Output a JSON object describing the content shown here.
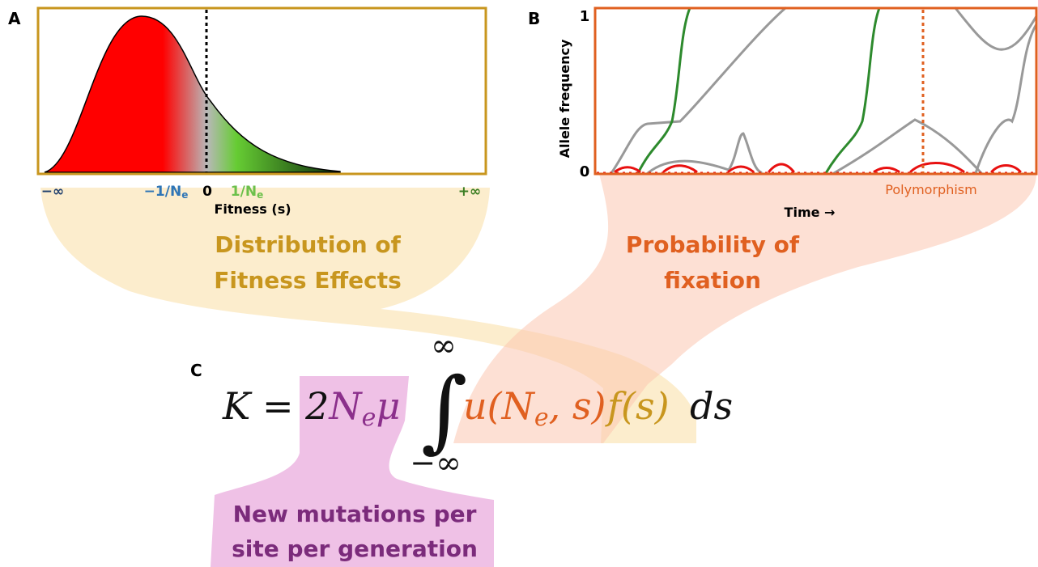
{
  "panel_a": {
    "label": "A",
    "ticks": [
      {
        "text": "−∞"
      },
      {
        "text": "−1/N",
        "sub": "e"
      },
      {
        "text": "0"
      },
      {
        "text": "1/N",
        "sub": "e"
      },
      {
        "text": "+∞"
      }
    ],
    "xlabel": "Fitness (s)",
    "caption": [
      "Distribution of",
      "Fitness Effects"
    ]
  },
  "panel_b": {
    "label": "B",
    "ylabel": "Allele frequency",
    "ytick_top": "1",
    "ytick_bottom": "0",
    "annotation": "Polymorphism",
    "xlabel": "Time →",
    "caption": [
      "Probability of",
      "fixation"
    ]
  },
  "panel_c": {
    "label": "C",
    "equation": [
      {
        "text": "K = 2"
      },
      {
        "text": "N"
      },
      {
        "text": "e"
      },
      {
        "text": "μ"
      },
      {
        "text": "u(N"
      },
      {
        "text": "e"
      },
      {
        "text": ", s)"
      },
      {
        "text": "f(s)"
      },
      {
        "text": "ds"
      }
    ],
    "integral": {
      "sign": "∫",
      "upper": "∞",
      "lower": "−∞"
    },
    "caption": [
      "New mutations per",
      "site per generation"
    ]
  }
}
